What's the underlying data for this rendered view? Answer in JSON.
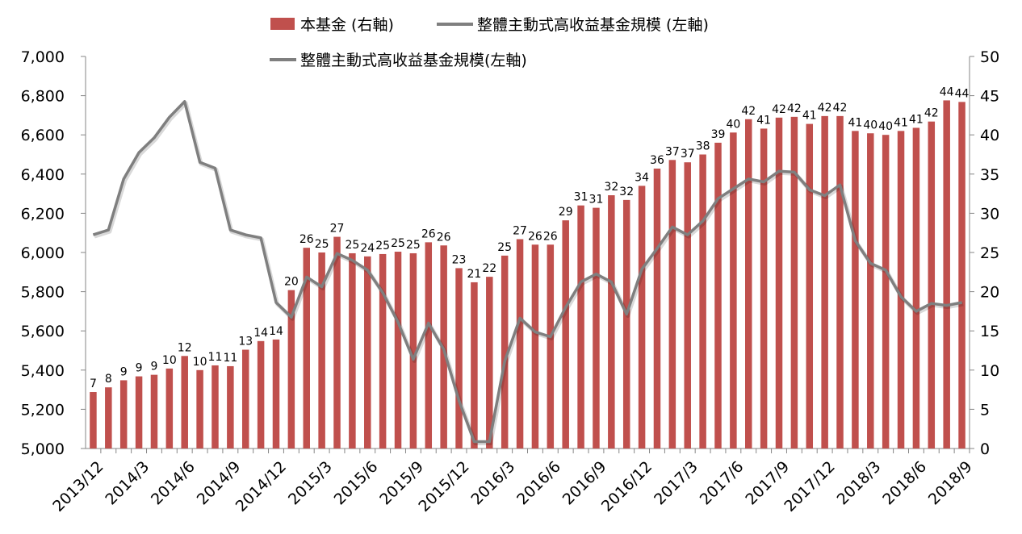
{
  "chart_data": {
    "type": "bar+line",
    "legend": {
      "items": [
        "本基金 (右軸)",
        "整體主動式高收益基金規模 (左軸)",
        "整體主動式高收益基金規模(左軸)"
      ],
      "position": "top-center"
    },
    "x": [
      "2013/12",
      "2014/1",
      "2014/2",
      "2014/3",
      "2014/4",
      "2014/5",
      "2014/6",
      "2014/7",
      "2014/8",
      "2014/9",
      "2014/10",
      "2014/11",
      "2014/12",
      "2015/1",
      "2015/2",
      "2015/3",
      "2015/4",
      "2015/5",
      "2015/6",
      "2015/7",
      "2015/8",
      "2015/9",
      "2015/10",
      "2015/11",
      "2015/12",
      "2016/1",
      "2016/2",
      "2016/3",
      "2016/4",
      "2016/5",
      "2016/6",
      "2016/7",
      "2016/8",
      "2016/9",
      "2016/10",
      "2016/11",
      "2016/12",
      "2017/1",
      "2017/2",
      "2017/3",
      "2017/4",
      "2017/5",
      "2017/6",
      "2017/7",
      "2017/8",
      "2017/9",
      "2017/10",
      "2017/11",
      "2017/12",
      "2018/1",
      "2018/2",
      "2018/3",
      "2018/4",
      "2018/5",
      "2018/6",
      "2018/7",
      "2018/8",
      "2018/9"
    ],
    "xtick_labels": [
      "2013/12",
      "2014/3",
      "2014/6",
      "2014/9",
      "2014/12",
      "2015/3",
      "2015/6",
      "2015/9",
      "2015/12",
      "2016/3",
      "2016/6",
      "2016/9",
      "2016/12",
      "2017/3",
      "2017/6",
      "2017/9",
      "2017/12",
      "2018/3",
      "2018/6",
      "2018/9"
    ],
    "left_axis": {
      "ylim": [
        5000,
        7000
      ],
      "ticks": [
        "5,000",
        "5,200",
        "5,400",
        "5,600",
        "5,800",
        "6,000",
        "6,200",
        "6,400",
        "6,600",
        "6,800",
        "7,000"
      ]
    },
    "right_axis": {
      "ylim": [
        0,
        50
      ],
      "ticks": [
        "0",
        "5",
        "10",
        "15",
        "20",
        "25",
        "30",
        "35",
        "40",
        "45",
        "50"
      ]
    },
    "series": [
      {
        "name": "本基金 (右軸)",
        "type": "bar",
        "axis": "right",
        "color": "#c0504d",
        "values": [
          7.2,
          7.8,
          8.7,
          9.2,
          9.4,
          10.2,
          11.8,
          10.0,
          10.6,
          10.5,
          12.6,
          13.7,
          13.9,
          20.2,
          25.6,
          25.0,
          27.0,
          24.9,
          24.5,
          24.8,
          25.1,
          24.9,
          26.3,
          25.9,
          23.0,
          21.2,
          21.9,
          24.6,
          26.7,
          26.0,
          26.0,
          29.1,
          31.0,
          30.7,
          32.3,
          31.7,
          33.5,
          35.7,
          36.8,
          36.5,
          37.5,
          39.0,
          40.3,
          42.0,
          40.8,
          42.2,
          42.3,
          41.4,
          42.4,
          42.4,
          40.5,
          40.2,
          40.0,
          40.5,
          40.9,
          41.7,
          44.4,
          44.2
        ],
        "labels": [
          "7",
          "8",
          "9",
          "9",
          "9",
          "10",
          "12",
          "10",
          "11",
          "11",
          "13",
          "14",
          "14",
          "20",
          "26",
          "25",
          "27",
          "25",
          "24",
          "25",
          "25",
          "25",
          "26",
          "26",
          "23",
          "21",
          "22",
          "25",
          "27",
          "26",
          "26",
          "29",
          "31",
          "31",
          "32",
          "32",
          "34",
          "36",
          "37",
          "37",
          "38",
          "39",
          "40",
          "42",
          "41",
          "42",
          "42",
          "41",
          "42",
          "42",
          "41",
          "40",
          "40",
          "41",
          "41",
          "42",
          "44",
          "44"
        ]
      },
      {
        "name": "整體主動式高收益基金規模 (左軸)",
        "type": "line",
        "axis": "left",
        "color": "#7f7f7f",
        "values": [
          6090,
          6115,
          6375,
          6510,
          6585,
          6690,
          6770,
          6460,
          6430,
          6115,
          6090,
          6075,
          5745,
          5670,
          5875,
          5825,
          5995,
          5960,
          5910,
          5795,
          5645,
          5455,
          5640,
          5505,
          5245,
          5035,
          5035,
          5445,
          5665,
          5595,
          5570,
          5720,
          5850,
          5890,
          5850,
          5685,
          5915,
          6020,
          6130,
          6090,
          6160,
          6275,
          6325,
          6375,
          6360,
          6415,
          6410,
          6320,
          6290,
          6345,
          6060,
          5945,
          5910,
          5775,
          5700,
          5740,
          5730,
          5745
        ]
      }
    ]
  }
}
